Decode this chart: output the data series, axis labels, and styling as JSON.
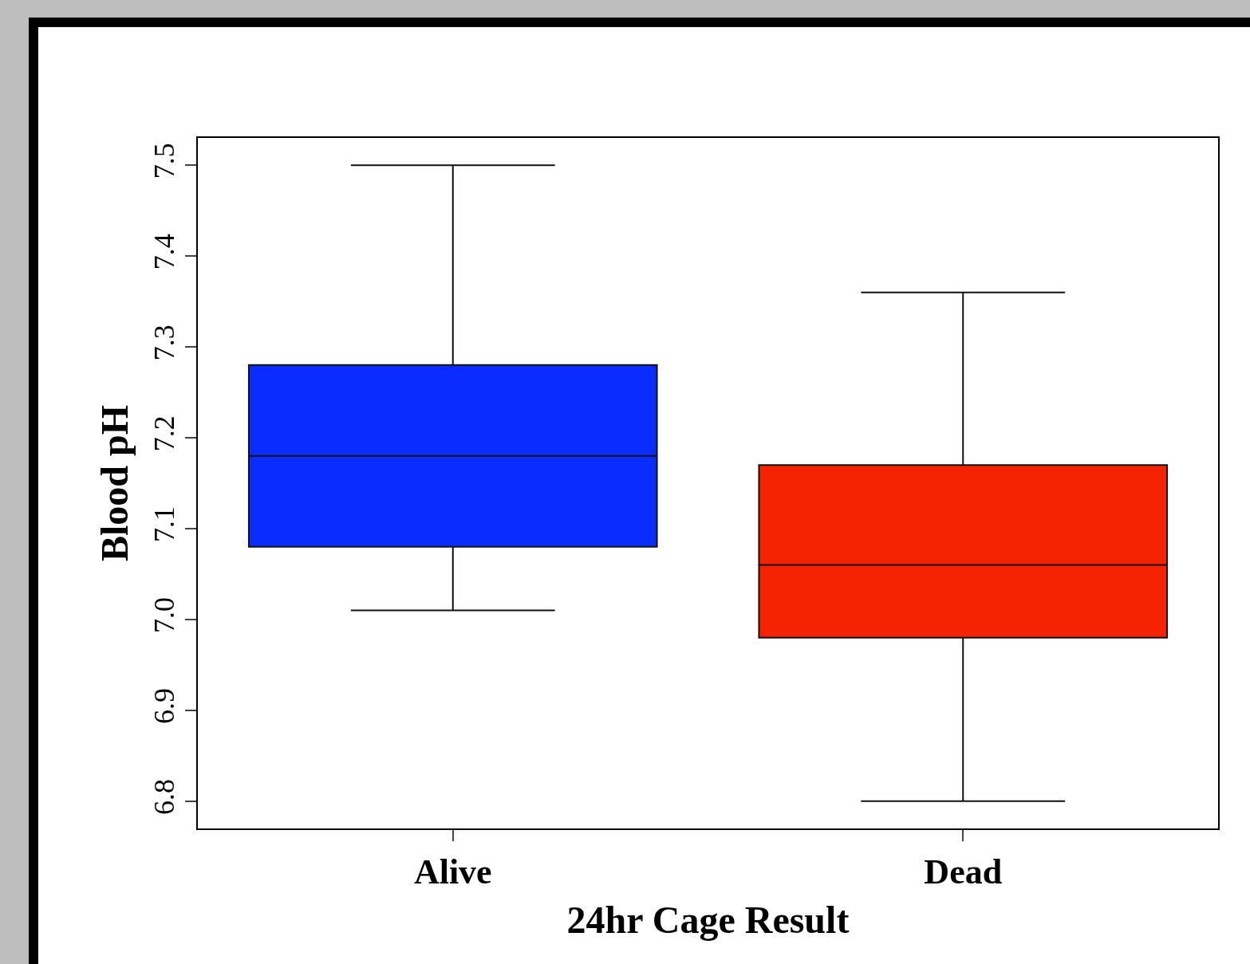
{
  "chart_data": {
    "type": "box",
    "xlabel": "24hr Cage Result",
    "ylabel": "Blood pH",
    "categories": [
      "Alive",
      "Dead"
    ],
    "boxes": [
      {
        "low": 7.01,
        "q1": 7.08,
        "median": 7.18,
        "q3": 7.28,
        "high": 7.5
      },
      {
        "low": 6.8,
        "q1": 6.98,
        "median": 7.06,
        "q3": 7.17,
        "high": 7.36
      }
    ],
    "colors": [
      "#0a2dff",
      "#f52200"
    ],
    "ylim": [
      6.77,
      7.53
    ],
    "yticks": [
      6.8,
      6.9,
      {
        "value": 7,
        "label": "7.0"
      },
      7.1,
      7.2,
      7.3,
      7.4,
      7.5
    ]
  }
}
